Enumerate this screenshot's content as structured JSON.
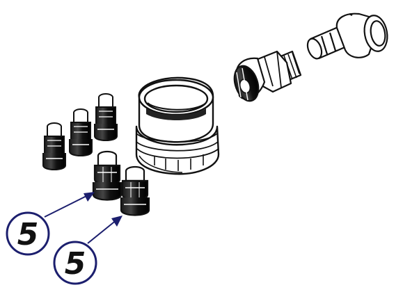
{
  "colors": {
    "ink": "#111111",
    "paper": "#ffffff",
    "callout_ring": "#1c1f6e",
    "callout_fill": "#ffffff",
    "leader": "#1c1f6e"
  },
  "callouts": [
    {
      "label": "5"
    },
    {
      "label": "5"
    }
  ]
}
